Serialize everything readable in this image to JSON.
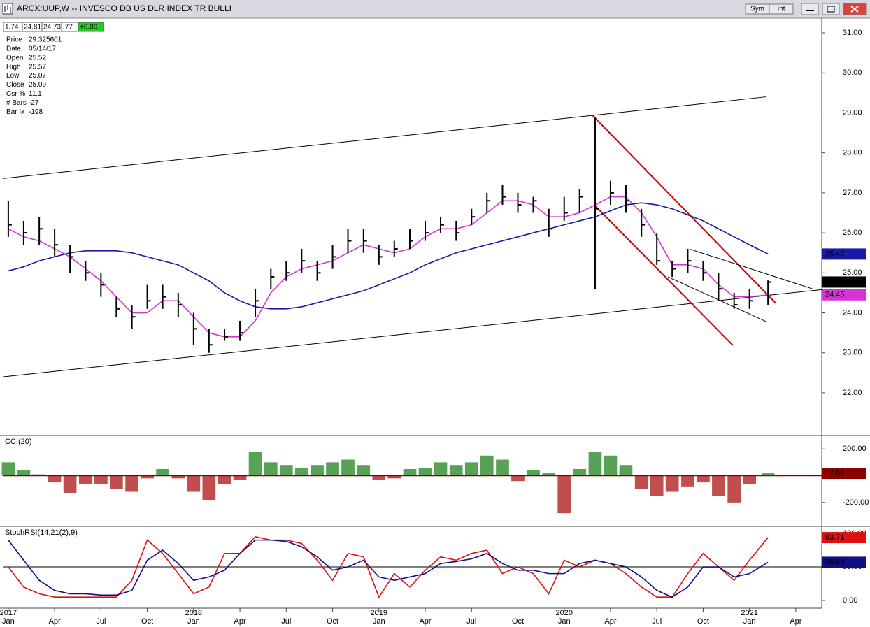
{
  "window": {
    "title": "ARCX:UUP,W -- INVESCO DB US DLR INDEX TR BULLI",
    "buttons": [
      "Sym",
      "Int"
    ]
  },
  "quote_bar": [
    "1.74",
    "24.81",
    "24.73",
    ".77",
    "+0.09"
  ],
  "data_window": [
    [
      "Price",
      "29.325601"
    ],
    [
      "Date",
      "05/14/17"
    ],
    [
      "Open",
      "25.52"
    ],
    [
      "High",
      "25.57"
    ],
    [
      "Low",
      "25.07"
    ],
    [
      "Close",
      "25.09"
    ],
    [
      "Csr %",
      "11.1"
    ],
    [
      "# Bars",
      "-27"
    ],
    [
      "Bar Ix",
      "-198"
    ]
  ],
  "chart_data": [
    {
      "type": "ohlc",
      "x": [
        2017,
        2017.083,
        2017.167,
        2017.25,
        2017.333,
        2017.417,
        2017.5,
        2017.583,
        2017.667,
        2017.75,
        2017.833,
        2017.917,
        2018,
        2018.083,
        2018.167,
        2018.25,
        2018.333,
        2018.417,
        2018.5,
        2018.583,
        2018.667,
        2018.75,
        2018.833,
        2018.917,
        2019,
        2019.083,
        2019.167,
        2019.25,
        2019.333,
        2019.417,
        2019.5,
        2019.583,
        2019.667,
        2019.75,
        2019.833,
        2019.917,
        2020,
        2020.083,
        2020.167,
        2020.25,
        2020.333,
        2020.417,
        2020.5,
        2020.583,
        2020.667,
        2020.75,
        2020.833,
        2020.917,
        2021,
        2021.1
      ],
      "price": {
        "color": "#000000",
        "high": [
          26.8,
          26.3,
          26.4,
          26.1,
          25.7,
          25.3,
          25.0,
          24.4,
          24.2,
          24.7,
          24.7,
          24.5,
          24.0,
          23.6,
          23.6,
          23.8,
          24.6,
          25.1,
          25.3,
          25.6,
          25.3,
          25.7,
          26.1,
          26.1,
          25.7,
          25.8,
          26.1,
          26.3,
          26.4,
          26.3,
          26.6,
          27.0,
          27.2,
          27.0,
          26.9,
          26.6,
          26.9,
          27.1,
          28.9,
          27.3,
          27.2,
          26.6,
          26.0,
          25.3,
          25.6,
          25.3,
          25.0,
          24.5,
          24.6,
          24.81
        ],
        "low": [
          25.9,
          25.7,
          25.7,
          25.4,
          25.0,
          24.8,
          24.4,
          23.9,
          23.6,
          24.1,
          24.1,
          23.9,
          23.2,
          23.0,
          23.3,
          23.3,
          23.9,
          24.6,
          24.8,
          25.0,
          24.8,
          25.1,
          25.5,
          25.5,
          25.2,
          25.4,
          25.6,
          25.8,
          26.0,
          25.8,
          26.2,
          26.5,
          26.7,
          26.5,
          26.5,
          25.9,
          26.3,
          26.5,
          24.6,
          26.7,
          26.5,
          25.9,
          25.2,
          24.9,
          25.0,
          24.8,
          24.3,
          24.1,
          24.1,
          24.2
        ],
        "close": [
          26.2,
          26.0,
          26.1,
          25.7,
          25.4,
          25.0,
          24.7,
          24.1,
          23.9,
          24.3,
          24.4,
          24.2,
          23.6,
          23.2,
          23.4,
          23.5,
          24.3,
          24.9,
          25.0,
          25.3,
          25.0,
          25.4,
          25.8,
          25.8,
          25.4,
          25.6,
          25.8,
          26.0,
          26.2,
          26.0,
          26.4,
          26.8,
          26.9,
          26.7,
          26.8,
          26.1,
          26.5,
          26.9,
          26.6,
          27.0,
          26.8,
          26.2,
          25.3,
          25.1,
          25.3,
          25.0,
          24.6,
          24.2,
          24.3,
          24.77
        ]
      },
      "moving_averages": [
        {
          "color": "#d633d6",
          "values": [
            26.1,
            25.9,
            25.8,
            25.6,
            25.4,
            25.1,
            24.8,
            24.4,
            24.0,
            24.0,
            24.3,
            24.3,
            23.9,
            23.5,
            23.4,
            23.4,
            23.8,
            24.5,
            24.9,
            25.1,
            25.2,
            25.3,
            25.5,
            25.7,
            25.6,
            25.5,
            25.6,
            25.9,
            26.1,
            26.1,
            26.2,
            26.5,
            26.8,
            26.8,
            26.7,
            26.4,
            26.4,
            26.5,
            26.7,
            26.9,
            26.9,
            26.5,
            25.9,
            25.2,
            25.2,
            25.1,
            24.7,
            24.4,
            24.4,
            24.45
          ]
        },
        {
          "color": "#1a1aa6",
          "values": [
            25.05,
            25.15,
            25.3,
            25.4,
            25.5,
            25.55,
            25.55,
            25.55,
            25.5,
            25.4,
            25.3,
            25.2,
            25.0,
            24.8,
            24.5,
            24.3,
            24.15,
            24.1,
            24.1,
            24.15,
            24.25,
            24.35,
            24.45,
            24.55,
            24.7,
            24.85,
            25.0,
            25.2,
            25.35,
            25.5,
            25.6,
            25.7,
            25.8,
            25.9,
            26.0,
            26.1,
            26.2,
            26.3,
            26.4,
            26.55,
            26.7,
            26.75,
            26.7,
            26.6,
            26.45,
            26.3,
            26.1,
            25.9,
            25.7,
            25.47
          ]
        }
      ],
      "trendlines": [
        {
          "color": "#000000",
          "x": [
            2016.974,
            2021.09
          ],
          "y": [
            27.36,
            29.4
          ]
        },
        {
          "color": "#000000",
          "x": [
            2016.974,
            2021.39
          ],
          "y": [
            22.4,
            24.58
          ]
        },
        {
          "color": "#cc0000",
          "x": [
            2020.15,
            2021.14
          ],
          "y": [
            28.95,
            24.25
          ]
        },
        {
          "color": "#cc0000",
          "x": [
            2020.17,
            2020.91
          ],
          "y": [
            26.66,
            23.19
          ]
        },
        {
          "color": "#000000",
          "x": [
            2020.68,
            2021.34
          ],
          "y": [
            25.59,
            24.6
          ]
        },
        {
          "color": "#000000",
          "x": [
            2020.56,
            2021.09
          ],
          "y": [
            24.9,
            23.78
          ]
        }
      ],
      "xlim": [
        2016.974,
        2021.39
      ],
      "ylim": [
        20.95,
        31.35
      ],
      "yticks": [
        {
          "value": 22,
          "label": "22.00"
        },
        {
          "value": 23,
          "label": "23.00"
        },
        {
          "value": 24,
          "label": "24.00"
        },
        {
          "value": 25,
          "label": "25.00"
        },
        {
          "value": 26,
          "label": "26.00"
        },
        {
          "value": 27,
          "label": "27.00"
        },
        {
          "value": 28,
          "label": "28.00"
        },
        {
          "value": 29,
          "label": "29.00"
        },
        {
          "value": 30,
          "label": "30.00"
        },
        {
          "value": 31,
          "label": "31.00"
        }
      ],
      "xticks": [
        {
          "value": 2017,
          "label": "Jan"
        },
        {
          "value": 2017.25,
          "label": "Apr"
        },
        {
          "value": 2017.5,
          "label": "Jul"
        },
        {
          "value": 2017.75,
          "label": "Oct"
        },
        {
          "value": 2018,
          "label": "Jan"
        },
        {
          "value": 2018.25,
          "label": "Apr"
        },
        {
          "value": 2018.5,
          "label": "Jul"
        },
        {
          "value": 2018.75,
          "label": "Oct"
        },
        {
          "value": 2019,
          "label": "Jan"
        },
        {
          "value": 2019.25,
          "label": "Apr"
        },
        {
          "value": 2019.5,
          "label": "Jul"
        },
        {
          "value": 2019.75,
          "label": "Oct"
        },
        {
          "value": 2020,
          "label": "Jan"
        },
        {
          "value": 2020.25,
          "label": "Apr"
        },
        {
          "value": 2020.5,
          "label": "Jul"
        },
        {
          "value": 2020.75,
          "label": "Oct"
        },
        {
          "value": 2021,
          "label": "Jan"
        },
        {
          "value": 2021.25,
          "label": "Apr"
        }
      ],
      "xyears": [
        2017,
        2018,
        2019,
        2020,
        2021
      ]
    },
    {
      "type": "histogram",
      "title": "CCI(20)",
      "pos_color": "#2e8b2e",
      "neg_color": "#b22222",
      "line_color": "#8b0000",
      "values": [
        100,
        40,
        10,
        -50,
        -130,
        -60,
        -60,
        -100,
        -120,
        -20,
        50,
        -20,
        -120,
        -180,
        -60,
        -30,
        180,
        100,
        80,
        60,
        80,
        100,
        120,
        80,
        -30,
        -20,
        50,
        60,
        100,
        80,
        100,
        150,
        120,
        -40,
        40,
        20,
        -280,
        50,
        180,
        150,
        80,
        -100,
        -150,
        -120,
        -80,
        -50,
        -150,
        -200,
        -60,
        17.94
      ],
      "ylim": [
        -373,
        295
      ],
      "yticks": [
        {
          "value": -200,
          "label": "-200.00"
        },
        {
          "value": 200,
          "label": "200.00"
        }
      ]
    },
    {
      "type": "line",
      "title": "StochRSI(14,21(2),9)",
      "series": [
        {
          "color": "#dd1111",
          "values": [
            50,
            20,
            10,
            5,
            5,
            5,
            5,
            5,
            30,
            90,
            70,
            40,
            10,
            20,
            70,
            70,
            95,
            90,
            90,
            85,
            60,
            30,
            70,
            65,
            5,
            40,
            20,
            45,
            65,
            60,
            70,
            75,
            40,
            50,
            40,
            10,
            60,
            50,
            60,
            55,
            40,
            20,
            5,
            5,
            40,
            70,
            50,
            30,
            60,
            93.71
          ]
        },
        {
          "color": "#101080",
          "values": [
            90,
            60,
            30,
            15,
            10,
            10,
            8,
            8,
            15,
            60,
            75,
            55,
            30,
            35,
            45,
            70,
            90,
            90,
            88,
            80,
            65,
            45,
            50,
            60,
            35,
            30,
            35,
            40,
            55,
            58,
            62,
            70,
            55,
            45,
            45,
            40,
            40,
            55,
            60,
            55,
            50,
            35,
            15,
            5,
            20,
            50,
            50,
            35,
            40,
            56.89
          ]
        }
      ],
      "ylim": [
        -10.4,
        109.4
      ],
      "yticks": [
        {
          "value": 0,
          "label": "0.00"
        },
        {
          "value": 50,
          "label": "50.00"
        },
        {
          "value": 100,
          "label": "100.00"
        }
      ]
    }
  ]
}
